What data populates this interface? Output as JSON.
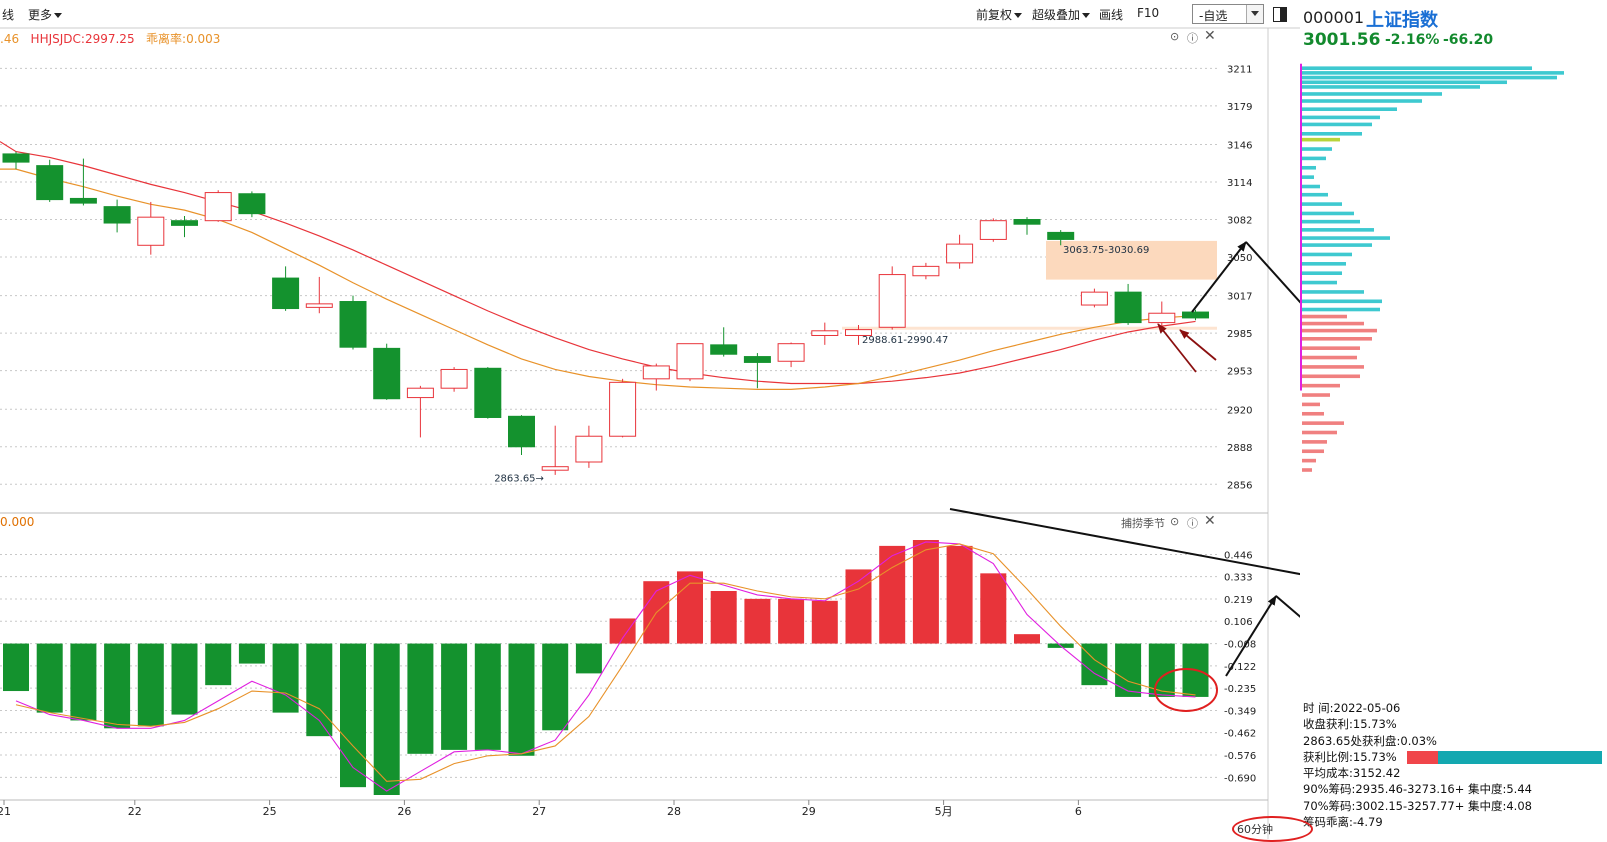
{
  "toolbar": {
    "left_items": [
      "线",
      "更多"
    ],
    "right_items": [
      "前复权",
      "超级叠加",
      "画线",
      "F10"
    ],
    "dropdown_value": "-自选"
  },
  "indicator": {
    "prefix": ".46",
    "hhjsjdc": "HHJSJDC:2997.25",
    "deviation": "乖离率:0.003"
  },
  "sub_indicator": {
    "value": "0.000",
    "title": "捕捞季节"
  },
  "stock": {
    "code": "000001",
    "name": "上证指数",
    "price": "3001.56",
    "pct": "-2.16%",
    "change": "-66.20"
  },
  "info": {
    "time": "时        间:2022-05-06",
    "close_profit": "收盘获利:15.73%",
    "profit_at": "2863.65处获利盘:0.03%",
    "profit_ratio": "获利比例:15.73%",
    "profit_ratio_value": 15.73,
    "avg_cost": "平均成本:3152.42",
    "chip90": "90%筹码:2935.46-3273.16+ 集中度:5.44",
    "chip70": "70%筹码:3002.15-3257.77+ 集中度:4.08",
    "chip_dev": "筹码乖离:-4.79"
  },
  "period": "60分钟",
  "colors": {
    "up": "#e8343a",
    "down": "#14922e",
    "ma_red": "#e8343a",
    "ma_orange": "#e8922a",
    "highlight": "#fcd9bd",
    "cyan": "#3ec9d0",
    "pink": "#f08080",
    "magenta": "#e020e0"
  },
  "chart_data": [
    {
      "type": "candlestick",
      "x_labels": [
        "21",
        "22",
        "25",
        "26",
        "27",
        "28",
        "29",
        "5月",
        "6"
      ],
      "y_ticks": [
        3211,
        3179,
        3146,
        3114,
        3082,
        3050,
        3017,
        2985,
        2953,
        2920,
        2888,
        2856
      ],
      "ylim": [
        2840,
        3225
      ],
      "candles": [
        {
          "o": 3138,
          "c": 3131,
          "h": 3140,
          "l": 3125
        },
        {
          "o": 3128,
          "c": 3099,
          "h": 3133,
          "l": 3097
        },
        {
          "o": 3100,
          "c": 3096,
          "h": 3134,
          "l": 3094
        },
        {
          "o": 3093,
          "c": 3079,
          "h": 3099,
          "l": 3071
        },
        {
          "o": 3060,
          "c": 3084,
          "h": 3097,
          "l": 3052
        },
        {
          "o": 3081,
          "c": 3077,
          "h": 3085,
          "l": 3067
        },
        {
          "o": 3081,
          "c": 3105,
          "h": 3107,
          "l": 3080
        },
        {
          "o": 3104,
          "c": 3087,
          "h": 3106,
          "l": 3084
        },
        {
          "o": 3032,
          "c": 3006,
          "h": 3042,
          "l": 3004
        },
        {
          "o": 3007,
          "c": 3010,
          "h": 3033,
          "l": 3002
        },
        {
          "o": 3012,
          "c": 2973,
          "h": 3017,
          "l": 2971
        },
        {
          "o": 2972,
          "c": 2929,
          "h": 2976,
          "l": 2928
        },
        {
          "o": 2930,
          "c": 2938,
          "h": 2940,
          "l": 2896
        },
        {
          "o": 2938,
          "c": 2954,
          "h": 2956,
          "l": 2935
        },
        {
          "o": 2955,
          "c": 2913,
          "h": 2956,
          "l": 2912
        },
        {
          "o": 2914,
          "c": 2888,
          "h": 2915,
          "l": 2881
        },
        {
          "o": 2868,
          "c": 2871,
          "h": 2906,
          "l": 2864
        },
        {
          "o": 2875,
          "c": 2897,
          "h": 2906,
          "l": 2870
        },
        {
          "o": 2897,
          "c": 2943,
          "h": 2946,
          "l": 2896
        },
        {
          "o": 2946,
          "c": 2957,
          "h": 2959,
          "l": 2936
        },
        {
          "o": 2946,
          "c": 2976,
          "h": 2976,
          "l": 2944
        },
        {
          "o": 2975,
          "c": 2967,
          "h": 2990,
          "l": 2965
        },
        {
          "o": 2965,
          "c": 2960,
          "h": 2968,
          "l": 2938
        },
        {
          "o": 2961,
          "c": 2976,
          "h": 2977,
          "l": 2956
        },
        {
          "o": 2983,
          "c": 2987,
          "h": 2994,
          "l": 2975
        },
        {
          "o": 2983,
          "c": 2988,
          "h": 2992,
          "l": 2975
        },
        {
          "o": 2990,
          "c": 3035,
          "h": 3042,
          "l": 2988
        },
        {
          "o": 3034,
          "c": 3042,
          "h": 3045,
          "l": 3031
        },
        {
          "o": 3045,
          "c": 3061,
          "h": 3069,
          "l": 3040
        },
        {
          "o": 3065,
          "c": 3081,
          "h": 3083,
          "l": 3063
        },
        {
          "o": 3082,
          "c": 3078,
          "h": 3084,
          "l": 3069
        },
        {
          "o": 3071,
          "c": 3065,
          "h": 3073,
          "l": 3060
        },
        {
          "o": 3009,
          "c": 3020,
          "h": 3023,
          "l": 3007
        },
        {
          "o": 3020,
          "c": 2994,
          "h": 3027,
          "l": 2992
        },
        {
          "o": 2994,
          "c": 3002,
          "h": 3012,
          "l": 2991
        },
        {
          "o": 3003,
          "c": 2998,
          "h": 3005,
          "l": 2996
        }
      ],
      "annotations": [
        {
          "text": "2863.65",
          "at": 2863.65,
          "candle": 16
        },
        {
          "text": "2988.61-2990.47",
          "low": 2988.61,
          "high": 2990.47
        },
        {
          "text": "3063.75-3030.69",
          "low": 3030.69,
          "high": 3063.75
        }
      ],
      "ma_series": [
        {
          "color": "#e8343a",
          "values": [
            3140,
            3135,
            3128,
            3120,
            3112,
            3105,
            3097,
            3089,
            3079,
            3068,
            3056,
            3043,
            3030,
            3017,
            3004,
            2992,
            2981,
            2971,
            2963,
            2956,
            2951,
            2947,
            2944,
            2942,
            2942,
            2942,
            2944,
            2947,
            2951,
            2957,
            2964,
            2971,
            2979,
            2986,
            2991,
            2995
          ]
        },
        {
          "color": "#e8922a",
          "values": [
            3125,
            3117,
            3110,
            3102,
            3095,
            3090,
            3082,
            3071,
            3057,
            3043,
            3028,
            3014,
            3001,
            2988,
            2975,
            2963,
            2954,
            2948,
            2944,
            2941,
            2939,
            2938,
            2937,
            2937,
            2939,
            2942,
            2948,
            2955,
            2962,
            2970,
            2977,
            2984,
            2990,
            2995,
            2998,
            3000
          ]
        }
      ]
    },
    {
      "type": "bar",
      "title": "捕捞季节",
      "y_ticks": [
        0.446,
        0.333,
        0.219,
        0.106,
        -0.008,
        -0.122,
        -0.235,
        -0.349,
        -0.462,
        -0.576,
        -0.69
      ],
      "ylim": [
        -0.78,
        0.52
      ],
      "values": [
        -0.25,
        -0.36,
        -0.4,
        -0.44,
        -0.43,
        -0.37,
        -0.22,
        -0.11,
        -0.36,
        -0.48,
        -0.74,
        -0.78,
        -0.57,
        -0.55,
        -0.55,
        -0.58,
        -0.45,
        -0.16,
        0.12,
        0.31,
        0.36,
        0.26,
        0.22,
        0.22,
        0.21,
        0.37,
        0.49,
        0.52,
        0.49,
        0.35,
        0.04,
        -0.03,
        -0.22,
        -0.28,
        -0.28,
        -0.28
      ],
      "lines": [
        {
          "color": "#e020e0",
          "values": [
            -0.3,
            -0.37,
            -0.4,
            -0.44,
            -0.44,
            -0.4,
            -0.3,
            -0.2,
            -0.27,
            -0.4,
            -0.64,
            -0.76,
            -0.66,
            -0.56,
            -0.55,
            -0.57,
            -0.5,
            -0.27,
            0.02,
            0.26,
            0.34,
            0.29,
            0.24,
            0.22,
            0.21,
            0.31,
            0.44,
            0.51,
            0.5,
            0.4,
            0.14,
            -0.02,
            -0.16,
            -0.25,
            -0.27,
            -0.28
          ]
        },
        {
          "color": "#e8922a",
          "values": [
            -0.32,
            -0.36,
            -0.39,
            -0.42,
            -0.43,
            -0.41,
            -0.34,
            -0.25,
            -0.26,
            -0.34,
            -0.53,
            -0.71,
            -0.7,
            -0.62,
            -0.58,
            -0.57,
            -0.53,
            -0.38,
            -0.12,
            0.15,
            0.3,
            0.3,
            0.26,
            0.23,
            0.22,
            0.27,
            0.38,
            0.47,
            0.5,
            0.45,
            0.27,
            0.08,
            -0.09,
            -0.2,
            -0.25,
            -0.27
          ]
        }
      ]
    },
    {
      "type": "histogram",
      "title": "chip distribution",
      "bins": [
        {
          "price": 3211,
          "v": 230,
          "c": "cyan"
        },
        {
          "price": 3207,
          "v": 262,
          "c": "cyan"
        },
        {
          "price": 3203,
          "v": 255,
          "c": "cyan"
        },
        {
          "price": 3199,
          "v": 205,
          "c": "cyan"
        },
        {
          "price": 3195,
          "v": 178,
          "c": "cyan"
        },
        {
          "price": 3189,
          "v": 140,
          "c": "cyan"
        },
        {
          "price": 3183,
          "v": 120,
          "c": "cyan"
        },
        {
          "price": 3176,
          "v": 95,
          "c": "cyan"
        },
        {
          "price": 3169,
          "v": 78,
          "c": "cyan"
        },
        {
          "price": 3163,
          "v": 70,
          "c": "cyan"
        },
        {
          "price": 3155,
          "v": 60,
          "c": "cyan"
        },
        {
          "price": 3150,
          "v": 38,
          "c": "yellow"
        },
        {
          "price": 3142,
          "v": 30,
          "c": "cyan"
        },
        {
          "price": 3134,
          "v": 24,
          "c": "cyan"
        },
        {
          "price": 3126,
          "v": 14,
          "c": "cyan"
        },
        {
          "price": 3118,
          "v": 12,
          "c": "cyan"
        },
        {
          "price": 3110,
          "v": 18,
          "c": "cyan"
        },
        {
          "price": 3103,
          "v": 26,
          "c": "cyan"
        },
        {
          "price": 3095,
          "v": 40,
          "c": "cyan"
        },
        {
          "price": 3087,
          "v": 52,
          "c": "cyan"
        },
        {
          "price": 3080,
          "v": 58,
          "c": "cyan"
        },
        {
          "price": 3073,
          "v": 72,
          "c": "cyan"
        },
        {
          "price": 3066,
          "v": 88,
          "c": "cyan"
        },
        {
          "price": 3060,
          "v": 70,
          "c": "cyan"
        },
        {
          "price": 3052,
          "v": 50,
          "c": "cyan"
        },
        {
          "price": 3044,
          "v": 44,
          "c": "cyan"
        },
        {
          "price": 3036,
          "v": 40,
          "c": "cyan"
        },
        {
          "price": 3028,
          "v": 35,
          "c": "cyan"
        },
        {
          "price": 3020,
          "v": 62,
          "c": "cyan"
        },
        {
          "price": 3012,
          "v": 80,
          "c": "cyan"
        },
        {
          "price": 3005,
          "v": 78,
          "c": "cyan"
        },
        {
          "price": 2999,
          "v": 45,
          "c": "pink"
        },
        {
          "price": 2993,
          "v": 62,
          "c": "pink"
        },
        {
          "price": 2987,
          "v": 75,
          "c": "pink"
        },
        {
          "price": 2980,
          "v": 70,
          "c": "pink"
        },
        {
          "price": 2972,
          "v": 58,
          "c": "pink"
        },
        {
          "price": 2964,
          "v": 55,
          "c": "pink"
        },
        {
          "price": 2956,
          "v": 62,
          "c": "pink"
        },
        {
          "price": 2948,
          "v": 58,
          "c": "pink"
        },
        {
          "price": 2940,
          "v": 38,
          "c": "pink"
        },
        {
          "price": 2932,
          "v": 28,
          "c": "pink"
        },
        {
          "price": 2924,
          "v": 18,
          "c": "pink"
        },
        {
          "price": 2916,
          "v": 22,
          "c": "pink"
        },
        {
          "price": 2908,
          "v": 42,
          "c": "pink"
        },
        {
          "price": 2900,
          "v": 35,
          "c": "pink"
        },
        {
          "price": 2892,
          "v": 25,
          "c": "pink"
        },
        {
          "price": 2884,
          "v": 22,
          "c": "pink"
        },
        {
          "price": 2876,
          "v": 14,
          "c": "pink"
        },
        {
          "price": 2868,
          "v": 10,
          "c": "pink"
        }
      ]
    }
  ]
}
